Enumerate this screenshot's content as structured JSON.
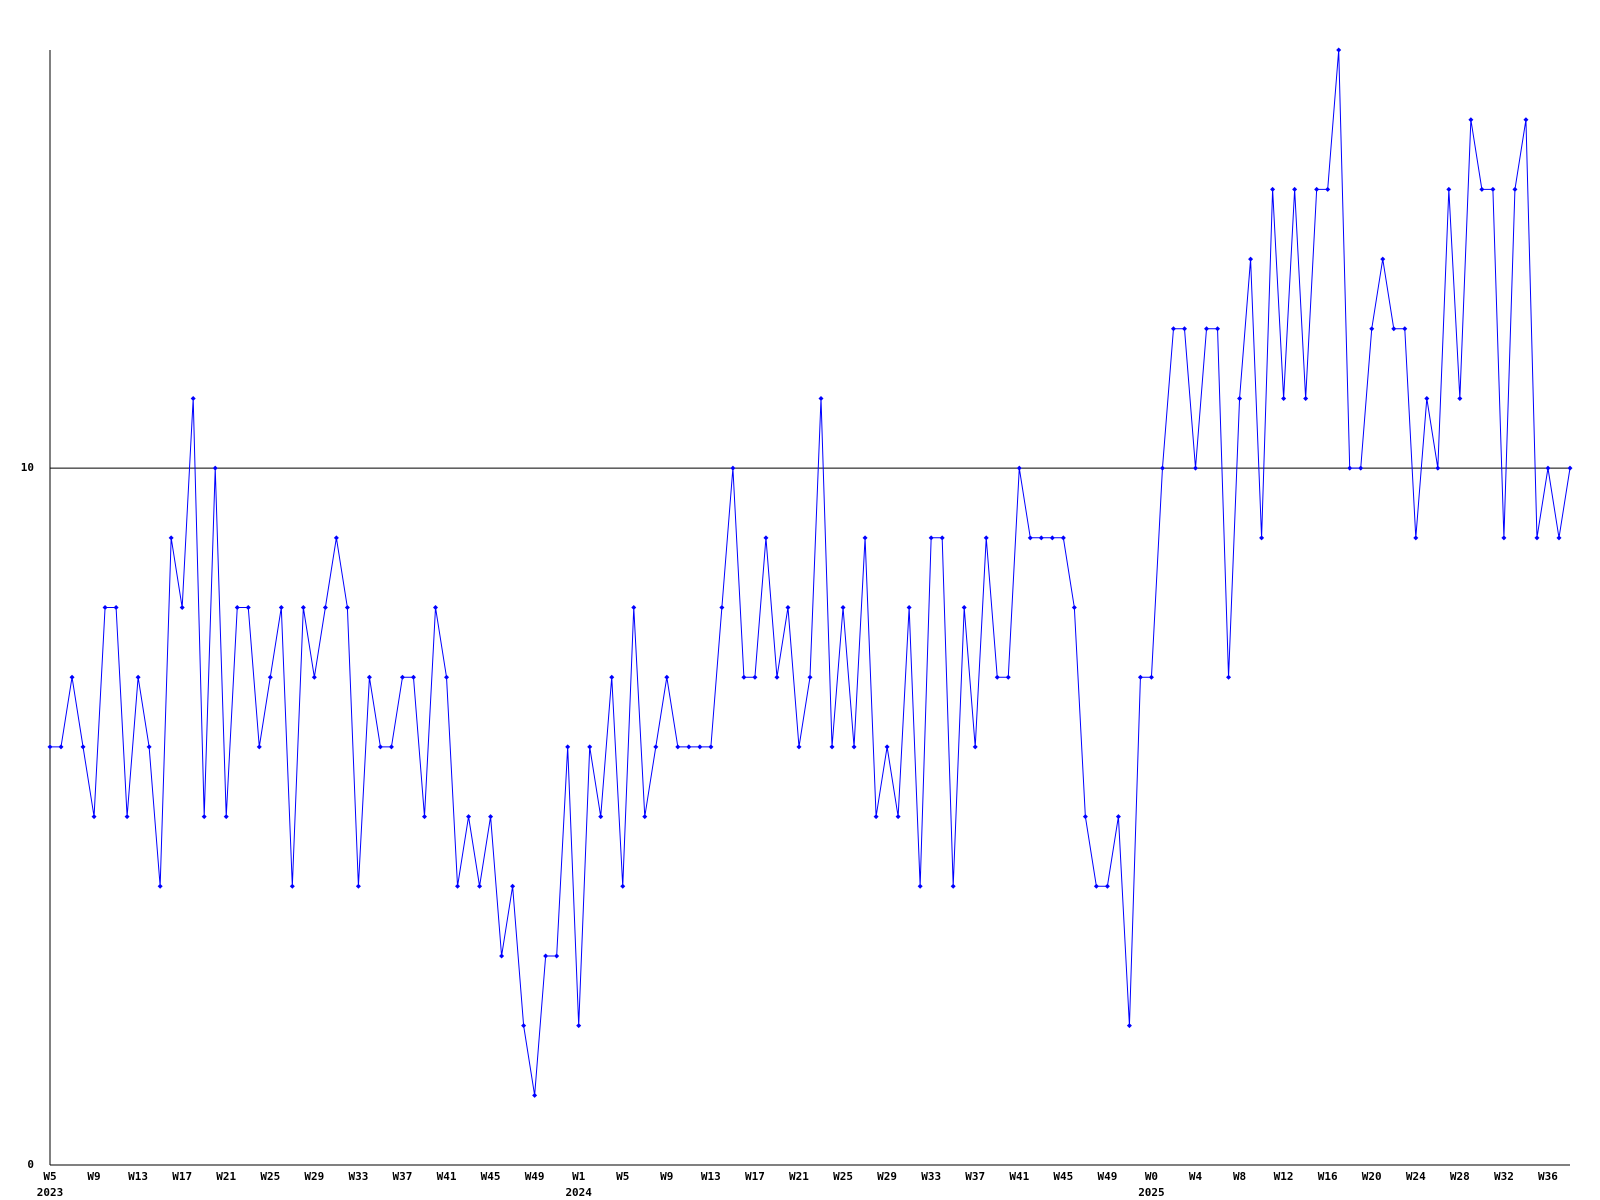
{
  "chart_data": {
    "type": "line",
    "categories": [
      "W5",
      null,
      null,
      null,
      "W9",
      null,
      null,
      null,
      "W13",
      null,
      null,
      null,
      "W17",
      null,
      null,
      null,
      "W21",
      null,
      null,
      null,
      "W25",
      null,
      null,
      null,
      "W29",
      null,
      null,
      null,
      "W33",
      null,
      null,
      null,
      "W37",
      null,
      null,
      null,
      "W41",
      null,
      null,
      null,
      "W45",
      null,
      null,
      null,
      "W49",
      null,
      null,
      null,
      "W1",
      null,
      null,
      null,
      "W5",
      null,
      null,
      null,
      "W9",
      null,
      null,
      null,
      "W13",
      null,
      null,
      null,
      "W17",
      null,
      null,
      null,
      "W21",
      null,
      null,
      null,
      "W25",
      null,
      null,
      null,
      "W29",
      null,
      null,
      null,
      "W33",
      null,
      null,
      null,
      "W37",
      null,
      null,
      null,
      "W41",
      null,
      null,
      null,
      "W45",
      null,
      null,
      null,
      "W49",
      null,
      null,
      null,
      "W0",
      null,
      null,
      null,
      "W4",
      null,
      null,
      null,
      "W8",
      null,
      null,
      null,
      "W12",
      null,
      null,
      null,
      "W16",
      null,
      null,
      null,
      "W20",
      null,
      null,
      null,
      "W24",
      null,
      null,
      null,
      "W28",
      null,
      null,
      null,
      "W32",
      null,
      null,
      null,
      "W36",
      null,
      null
    ],
    "category_years": [
      "2023",
      null,
      null,
      null,
      null,
      null,
      null,
      null,
      null,
      null,
      null,
      null,
      null,
      null,
      null,
      null,
      null,
      null,
      null,
      null,
      null,
      null,
      null,
      null,
      null,
      null,
      null,
      null,
      null,
      null,
      null,
      null,
      null,
      null,
      null,
      null,
      null,
      null,
      null,
      null,
      null,
      null,
      null,
      null,
      null,
      null,
      null,
      null,
      "2024",
      null,
      null,
      null,
      null,
      null,
      null,
      null,
      null,
      null,
      null,
      null,
      null,
      null,
      null,
      null,
      null,
      null,
      null,
      null,
      null,
      null,
      null,
      null,
      null,
      null,
      null,
      null,
      null,
      null,
      null,
      null,
      null,
      null,
      null,
      null,
      null,
      null,
      null,
      null,
      null,
      null,
      null,
      null,
      null,
      null,
      null,
      null,
      null,
      null,
      null,
      null,
      "2025",
      null,
      null,
      null,
      null,
      null,
      null,
      null,
      null,
      null,
      null,
      null,
      null,
      null,
      null,
      null,
      null,
      null,
      null,
      null,
      null,
      null,
      null,
      null,
      null,
      null,
      null,
      null,
      null,
      null,
      null,
      null,
      null,
      null,
      null,
      null,
      null,
      null,
      null
    ],
    "series": [
      {
        "color": "#0000ff",
        "values": [
          6,
          6,
          7,
          6,
          5,
          8,
          8,
          5,
          7,
          6,
          4,
          9,
          8,
          11,
          5,
          10,
          5,
          8,
          8,
          6,
          7,
          8,
          4,
          8,
          7,
          8,
          9,
          8,
          4,
          7,
          6,
          6,
          7,
          7,
          5,
          8,
          7,
          4,
          5,
          4,
          5,
          3,
          4,
          2,
          1,
          3,
          3,
          6,
          2,
          6,
          5,
          7,
          4,
          8,
          5,
          6,
          7,
          6,
          6,
          6,
          6,
          8,
          10,
          7,
          7,
          9,
          7,
          8,
          6,
          7,
          11,
          6,
          8,
          6,
          9,
          5,
          6,
          5,
          8,
          4,
          9,
          9,
          4,
          8,
          6,
          9,
          7,
          7,
          10,
          9,
          9,
          9,
          9,
          8,
          5,
          4,
          4,
          5,
          2,
          7,
          7,
          10,
          12,
          12,
          10,
          12,
          12,
          7,
          11,
          13,
          9,
          14,
          11,
          14,
          11,
          14,
          14,
          16,
          10,
          10,
          12,
          13,
          12,
          12,
          9,
          11,
          10,
          14,
          11,
          15,
          14,
          14,
          9,
          14,
          15,
          9,
          10,
          9,
          10
        ]
      }
    ],
    "ylim": [
      0,
      16
    ],
    "yticks": [
      0,
      10
    ],
    "grid": true
  }
}
